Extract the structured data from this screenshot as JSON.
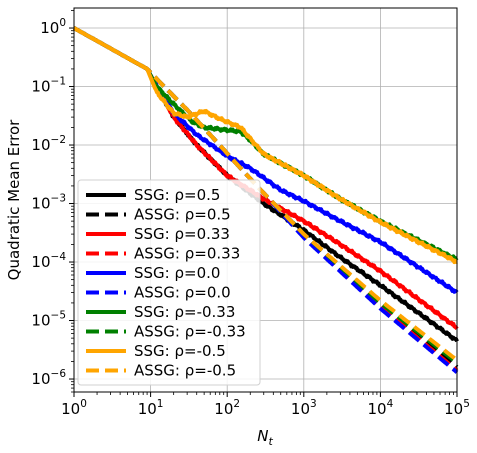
{
  "chart_data": {
    "type": "line",
    "xlabel": "N_t",
    "ylabel": "Quadratic Mean Error",
    "xscale": "log",
    "yscale": "log",
    "xlim": [
      1,
      100000
    ],
    "ylim": [
      6e-07,
      2.2
    ],
    "grid": true,
    "legend_position": "lower-left",
    "x_ticks": [
      {
        "value": 1,
        "base": "10",
        "exp": "0"
      },
      {
        "value": 10,
        "base": "10",
        "exp": "1"
      },
      {
        "value": 100,
        "base": "10",
        "exp": "2"
      },
      {
        "value": 1000,
        "base": "10",
        "exp": "3"
      },
      {
        "value": 10000,
        "base": "10",
        "exp": "4"
      },
      {
        "value": 100000,
        "base": "10",
        "exp": "5"
      }
    ],
    "y_ticks": [
      {
        "value": 1,
        "base": "10",
        "exp": "0"
      },
      {
        "value": 0.1,
        "base": "10",
        "exp": "−1"
      },
      {
        "value": 0.01,
        "base": "10",
        "exp": "−2"
      },
      {
        "value": 0.001,
        "base": "10",
        "exp": "−3"
      },
      {
        "value": 0.0001,
        "base": "10",
        "exp": "−4"
      },
      {
        "value": 1e-05,
        "base": "10",
        "exp": "−5"
      },
      {
        "value": 1e-06,
        "base": "10",
        "exp": "−6"
      }
    ],
    "series": [
      {
        "name": "SSG: ρ=0.5",
        "color": "#000000",
        "dash": false,
        "points": [
          [
            1,
            1
          ],
          [
            9,
            0.2
          ],
          [
            12,
            0.1
          ],
          [
            20,
            0.03
          ],
          [
            40,
            0.01
          ],
          [
            100,
            0.003
          ],
          [
            300,
            0.001
          ],
          [
            1000,
            0.00035
          ],
          [
            3000,
            0.00012
          ],
          [
            10000,
            4e-05
          ],
          [
            100000,
            4.5e-06
          ]
        ]
      },
      {
        "name": "ASSG: ρ=0.5",
        "color": "#000000",
        "dash": true,
        "points": [
          [
            1,
            1
          ],
          [
            9,
            0.2
          ],
          [
            15,
            0.1
          ],
          [
            30,
            0.04
          ],
          [
            70,
            0.012
          ],
          [
            150,
            0.004
          ],
          [
            300,
            0.0015
          ],
          [
            1000,
            0.0003
          ],
          [
            10000,
            2e-05
          ],
          [
            100000,
            1.6e-06
          ]
        ]
      },
      {
        "name": "SSG: ρ=0.33",
        "color": "#ff0000",
        "dash": false,
        "points": [
          [
            1,
            1
          ],
          [
            9,
            0.2
          ],
          [
            12,
            0.1
          ],
          [
            20,
            0.03
          ],
          [
            40,
            0.01
          ],
          [
            100,
            0.003
          ],
          [
            300,
            0.0012
          ],
          [
            1000,
            0.0005
          ],
          [
            3000,
            0.0002
          ],
          [
            10000,
            7e-05
          ],
          [
            100000,
            7.5e-06
          ]
        ]
      },
      {
        "name": "ASSG: ρ=0.33",
        "color": "#ff0000",
        "dash": true,
        "points": [
          [
            1,
            1
          ],
          [
            9,
            0.2
          ],
          [
            15,
            0.1
          ],
          [
            30,
            0.04
          ],
          [
            70,
            0.012
          ],
          [
            150,
            0.004
          ],
          [
            300,
            0.0015
          ],
          [
            1000,
            0.00028
          ],
          [
            10000,
            1.7e-05
          ],
          [
            100000,
            1.4e-06
          ]
        ]
      },
      {
        "name": "SSG: ρ=0.0",
        "color": "#0000ff",
        "dash": false,
        "points": [
          [
            1,
            1
          ],
          [
            9,
            0.2
          ],
          [
            12,
            0.1
          ],
          [
            20,
            0.035
          ],
          [
            40,
            0.015
          ],
          [
            100,
            0.0065
          ],
          [
            200,
            0.004
          ],
          [
            500,
            0.0017
          ],
          [
            1000,
            0.0011
          ],
          [
            3000,
            0.0005
          ],
          [
            10000,
            0.00022
          ],
          [
            100000,
            3e-05
          ]
        ]
      },
      {
        "name": "ASSG: ρ=0.0",
        "color": "#0000ff",
        "dash": true,
        "points": [
          [
            1,
            1
          ],
          [
            9,
            0.2
          ],
          [
            15,
            0.1
          ],
          [
            30,
            0.04
          ],
          [
            70,
            0.012
          ],
          [
            150,
            0.004
          ],
          [
            300,
            0.0015
          ],
          [
            1000,
            0.00026
          ],
          [
            10000,
            1.6e-05
          ],
          [
            100000,
            1.3e-06
          ]
        ]
      },
      {
        "name": "SSG: ρ=-0.33",
        "color": "#008000",
        "dash": false,
        "points": [
          [
            1,
            1
          ],
          [
            9,
            0.2
          ],
          [
            12,
            0.1
          ],
          [
            20,
            0.05
          ],
          [
            35,
            0.025
          ],
          [
            50,
            0.02
          ],
          [
            100,
            0.018
          ],
          [
            150,
            0.017
          ],
          [
            200,
            0.012
          ],
          [
            300,
            0.007
          ],
          [
            1000,
            0.003
          ],
          [
            3000,
            0.0012
          ],
          [
            10000,
            0.0005
          ],
          [
            100000,
            0.00011
          ]
        ]
      },
      {
        "name": "ASSG: ρ=-0.33",
        "color": "#008000",
        "dash": true,
        "points": [
          [
            1,
            1
          ],
          [
            9,
            0.2
          ],
          [
            15,
            0.1
          ],
          [
            30,
            0.04
          ],
          [
            70,
            0.012
          ],
          [
            150,
            0.004
          ],
          [
            300,
            0.0015
          ],
          [
            1000,
            0.0003
          ],
          [
            10000,
            2e-05
          ],
          [
            100000,
            1.9e-06
          ]
        ]
      },
      {
        "name": "SSG: ρ=-0.5",
        "color": "#ffa500",
        "dash": false,
        "points": [
          [
            1,
            1
          ],
          [
            9,
            0.2
          ],
          [
            12,
            0.08
          ],
          [
            20,
            0.035
          ],
          [
            30,
            0.03
          ],
          [
            50,
            0.038
          ],
          [
            80,
            0.028
          ],
          [
            150,
            0.02
          ],
          [
            300,
            0.007
          ],
          [
            1000,
            0.003
          ],
          [
            3000,
            0.0012
          ],
          [
            10000,
            0.00048
          ],
          [
            100000,
            0.0001
          ]
        ]
      },
      {
        "name": "ASSG: ρ=-0.5",
        "color": "#ffa500",
        "dash": true,
        "points": [
          [
            1,
            1
          ],
          [
            9,
            0.2
          ],
          [
            15,
            0.1
          ],
          [
            30,
            0.04
          ],
          [
            70,
            0.012
          ],
          [
            150,
            0.004
          ],
          [
            300,
            0.0015
          ],
          [
            1000,
            0.0003
          ],
          [
            10000,
            2.2e-05
          ],
          [
            100000,
            2.1e-06
          ]
        ]
      }
    ]
  }
}
